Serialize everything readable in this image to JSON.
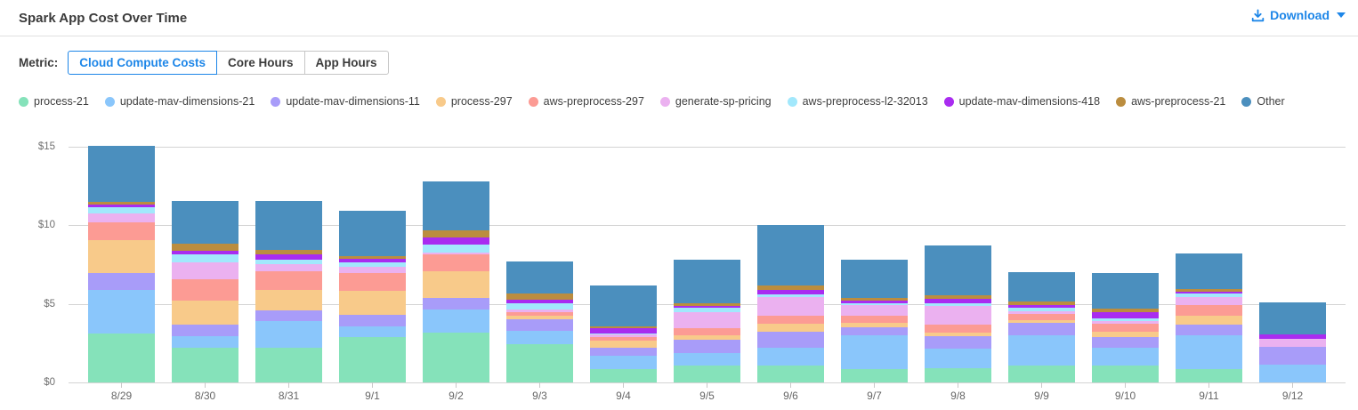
{
  "header": {
    "title": "Spark App Cost Over Time",
    "download": {
      "label": "Download",
      "color": "#1d86e8"
    }
  },
  "metric": {
    "label": "Metric:",
    "options": [
      {
        "label": "Cloud Compute Costs",
        "selected": true
      },
      {
        "label": "Core Hours",
        "selected": false
      },
      {
        "label": "App Hours",
        "selected": false
      }
    ]
  },
  "chart_data": {
    "type": "bar",
    "stacked": true,
    "title": "Spark App Cost Over Time",
    "grid": true,
    "legend_position": "top",
    "ylim": [
      0,
      15
    ],
    "y_ticks": [
      {
        "value": 0,
        "label": "$0"
      },
      {
        "value": 5,
        "label": "$5"
      },
      {
        "value": 10,
        "label": "$10"
      },
      {
        "value": 15,
        "label": "$15"
      }
    ],
    "categories": [
      "8/29",
      "8/30",
      "8/31",
      "9/1",
      "9/2",
      "9/3",
      "9/4",
      "9/5",
      "9/6",
      "9/7",
      "9/8",
      "9/9",
      "9/10",
      "9/11",
      "9/12"
    ],
    "series": [
      {
        "name": "process-21",
        "color": "#85e2ba",
        "values": [
          3.1,
          2.2,
          2.2,
          2.9,
          3.15,
          2.45,
          0.85,
          1.1,
          1.05,
          0.85,
          0.9,
          1.05,
          1.05,
          0.85,
          0.0
        ]
      },
      {
        "name": "update-mav-dimensions-21",
        "color": "#8ac6fb",
        "values": [
          2.8,
          0.75,
          1.7,
          0.65,
          1.5,
          0.85,
          0.85,
          0.8,
          1.15,
          2.15,
          1.25,
          1.95,
          1.15,
          2.15,
          1.15
        ]
      },
      {
        "name": "update-mav-dimensions-11",
        "color": "#a89cf9",
        "values": [
          1.05,
          0.75,
          0.7,
          0.75,
          0.75,
          0.7,
          0.5,
          0.85,
          1.0,
          0.5,
          0.8,
          0.8,
          0.7,
          0.7,
          1.1
        ]
      },
      {
        "name": "process-297",
        "color": "#f8ca8a",
        "values": [
          2.1,
          1.5,
          1.3,
          1.55,
          1.7,
          0.25,
          0.45,
          0.25,
          0.55,
          0.3,
          0.25,
          0.15,
          0.3,
          0.55,
          0.0
        ]
      },
      {
        "name": "aws-preprocess-297",
        "color": "#fc9b94",
        "values": [
          1.15,
          1.35,
          1.2,
          1.1,
          1.05,
          0.2,
          0.25,
          0.45,
          0.5,
          0.45,
          0.5,
          0.4,
          0.55,
          0.65,
          0.0
        ]
      },
      {
        "name": "generate-sp-pricing",
        "color": "#ebb1f0",
        "values": [
          0.55,
          1.1,
          0.4,
          0.4,
          0.1,
          0.2,
          0.15,
          1.05,
          1.2,
          0.65,
          1.15,
          0.2,
          0.15,
          0.55,
          0.55
        ]
      },
      {
        "name": "aws-preprocess-l2-32013",
        "color": "#a2e8fc",
        "values": [
          0.4,
          0.5,
          0.3,
          0.3,
          0.55,
          0.4,
          0.05,
          0.25,
          0.15,
          0.15,
          0.2,
          0.2,
          0.2,
          0.2,
          0.0
        ]
      },
      {
        "name": "update-mav-dimensions-418",
        "color": "#a92cf0",
        "values": [
          0.15,
          0.25,
          0.35,
          0.2,
          0.45,
          0.2,
          0.35,
          0.15,
          0.3,
          0.15,
          0.3,
          0.2,
          0.4,
          0.15,
          0.25
        ]
      },
      {
        "name": "aws-preprocess-21",
        "color": "#bb8d3f",
        "values": [
          0.2,
          0.4,
          0.3,
          0.2,
          0.45,
          0.4,
          0.15,
          0.15,
          0.25,
          0.2,
          0.2,
          0.2,
          0.2,
          0.15,
          0.0
        ]
      },
      {
        "name": "Other",
        "color": "#4b8fbe",
        "values": [
          3.55,
          2.75,
          3.1,
          2.9,
          3.1,
          2.05,
          2.6,
          2.75,
          3.85,
          2.4,
          3.2,
          1.9,
          2.25,
          2.25,
          2.05
        ]
      }
    ]
  }
}
